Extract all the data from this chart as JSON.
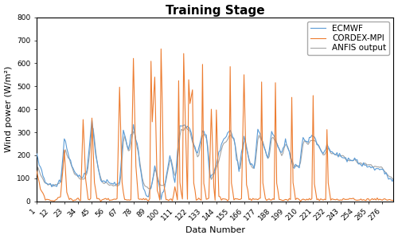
{
  "title": "Training Stage",
  "xlabel": "Data Number",
  "ylabel": "Wind power (W/m²)",
  "ylim": [
    0,
    800
  ],
  "xlim": [
    1,
    285
  ],
  "xticks": [
    1,
    12,
    23,
    34,
    45,
    56,
    67,
    78,
    89,
    100,
    111,
    122,
    133,
    144,
    155,
    166,
    177,
    188,
    199,
    210,
    221,
    232,
    243,
    254,
    265,
    276
  ],
  "yticks": [
    0,
    100,
    200,
    300,
    400,
    500,
    600,
    700,
    800
  ],
  "ecmwf_color": "#5B9BD5",
  "cordex_color": "#ED7D31",
  "anfis_color": "#A5A5A5",
  "ecmwf_label": "ECMWF",
  "cordex_label": "CORDEX-MPI",
  "anfis_label": "ANFIS output",
  "line_width": 0.8,
  "title_fontsize": 11,
  "legend_fontsize": 7.5,
  "axis_fontsize": 8,
  "tick_fontsize": 6.5
}
